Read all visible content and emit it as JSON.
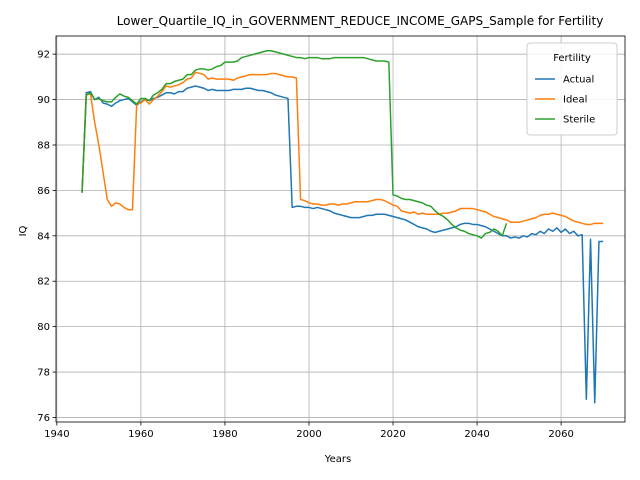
{
  "chart_data": {
    "type": "line",
    "title": "Lower_Quartile_IQ_in_GOVERNMENT_REDUCE_INCOME_GAPS_Sample for Fertility",
    "xlabel": "Years",
    "ylabel": "IQ",
    "xlim": [
      1939.8,
      2075.2
    ],
    "ylim": [
      75.8,
      92.8
    ],
    "xticks": [
      1940,
      1960,
      1980,
      2000,
      2020,
      2040,
      2060
    ],
    "yticks": [
      76,
      78,
      80,
      82,
      84,
      86,
      88,
      90,
      92
    ],
    "grid": true,
    "legend": {
      "title": "Fertility",
      "placement": "top-right"
    },
    "series": [
      {
        "name": "Actual",
        "color": "#1f77b4",
        "x": [
          1946,
          1947,
          1948,
          1949,
          1950,
          1951,
          1952,
          1953,
          1954,
          1955,
          1956,
          1957,
          1958,
          1959,
          1960,
          1961,
          1962,
          1963,
          1964,
          1965,
          1966,
          1967,
          1968,
          1969,
          1970,
          1971,
          1972,
          1973,
          1974,
          1975,
          1976,
          1977,
          1978,
          1979,
          1980,
          1981,
          1982,
          1983,
          1984,
          1985,
          1986,
          1987,
          1988,
          1989,
          1990,
          1991,
          1992,
          1993,
          1994,
          1995,
          1996,
          1997,
          1998,
          1999,
          2000,
          2001,
          2002,
          2003,
          2004,
          2005,
          2006,
          2007,
          2008,
          2009,
          2010,
          2011,
          2012,
          2013,
          2014,
          2015,
          2016,
          2017,
          2018,
          2019,
          2020,
          2021,
          2022,
          2023,
          2024,
          2025,
          2026,
          2027,
          2028,
          2029,
          2030,
          2031,
          2032,
          2033,
          2034,
          2035,
          2036,
          2037,
          2038,
          2039,
          2040,
          2041,
          2042,
          2043,
          2044,
          2045,
          2046,
          2047,
          2048,
          2049,
          2050,
          2051,
          2052,
          2053,
          2054,
          2055,
          2056,
          2057,
          2058,
          2059,
          2060,
          2061,
          2062,
          2063,
          2064,
          2065,
          2066,
          2067,
          2068,
          2069,
          2070
        ],
        "values": [
          85.9,
          90.3,
          90.35,
          90.0,
          90.1,
          89.85,
          89.8,
          89.7,
          89.85,
          89.95,
          90.0,
          90.05,
          89.9,
          89.75,
          89.9,
          90.0,
          89.95,
          90.05,
          90.1,
          90.2,
          90.3,
          90.3,
          90.25,
          90.35,
          90.35,
          90.5,
          90.55,
          90.6,
          90.55,
          90.5,
          90.4,
          90.45,
          90.4,
          90.4,
          90.4,
          90.4,
          90.45,
          90.45,
          90.45,
          90.5,
          90.5,
          90.45,
          90.4,
          90.4,
          90.35,
          90.3,
          90.2,
          90.15,
          90.1,
          90.05,
          85.25,
          85.3,
          85.3,
          85.25,
          85.25,
          85.2,
          85.25,
          85.2,
          85.15,
          85.1,
          85.0,
          84.95,
          84.9,
          84.85,
          84.8,
          84.8,
          84.8,
          84.85,
          84.9,
          84.9,
          84.95,
          84.95,
          84.95,
          84.9,
          84.85,
          84.8,
          84.75,
          84.7,
          84.6,
          84.5,
          84.4,
          84.35,
          84.3,
          84.2,
          84.15,
          84.2,
          84.25,
          84.3,
          84.35,
          84.4,
          84.5,
          84.55,
          84.55,
          84.5,
          84.5,
          84.45,
          84.4,
          84.3,
          84.2,
          84.1,
          84.0,
          84.0,
          83.9,
          83.95,
          83.9,
          84.0,
          83.95,
          84.1,
          84.05,
          84.2,
          84.1,
          84.3,
          84.2,
          84.35,
          84.15,
          84.3,
          84.1,
          84.2,
          84.0,
          84.05,
          76.8,
          83.85,
          76.65,
          83.75,
          83.75
        ],
        "x_detail_note": ""
      },
      {
        "name": "Ideal",
        "color": "#ff7f0e",
        "x": [
          1946,
          1947,
          1948,
          1949,
          1950,
          1951,
          1952,
          1953,
          1954,
          1955,
          1956,
          1957,
          1958,
          1959,
          1960,
          1961,
          1962,
          1963,
          1964,
          1965,
          1966,
          1967,
          1968,
          1969,
          1970,
          1971,
          1972,
          1973,
          1974,
          1975,
          1976,
          1977,
          1978,
          1979,
          1980,
          1981,
          1982,
          1983,
          1984,
          1985,
          1986,
          1987,
          1988,
          1989,
          1990,
          1991,
          1992,
          1993,
          1994,
          1995,
          1996,
          1997,
          1998,
          1999,
          2000,
          2001,
          2002,
          2003,
          2004,
          2005,
          2006,
          2007,
          2008,
          2009,
          2010,
          2011,
          2012,
          2013,
          2014,
          2015,
          2016,
          2017,
          2018,
          2019,
          2020,
          2021,
          2022,
          2023,
          2024,
          2025,
          2026,
          2027,
          2028,
          2029,
          2030,
          2031,
          2032,
          2033,
          2034,
          2035,
          2036,
          2037,
          2038,
          2039,
          2040,
          2041,
          2042,
          2043,
          2044,
          2045,
          2046,
          2047,
          2048,
          2049,
          2050,
          2051,
          2052,
          2053,
          2054,
          2055,
          2056,
          2057,
          2058,
          2059,
          2060,
          2061,
          2062,
          2063,
          2064,
          2065,
          2066,
          2067,
          2068,
          2069,
          2070
        ],
        "values": [
          85.9,
          90.2,
          90.25,
          89.0,
          88.0,
          86.8,
          85.6,
          85.3,
          85.45,
          85.4,
          85.25,
          85.15,
          85.15,
          89.8,
          89.85,
          90.0,
          89.8,
          90.0,
          90.15,
          90.35,
          90.6,
          90.55,
          90.6,
          90.65,
          90.75,
          90.9,
          90.95,
          91.2,
          91.15,
          91.1,
          90.9,
          90.95,
          90.9,
          90.9,
          90.9,
          90.9,
          90.85,
          90.95,
          91.0,
          91.05,
          91.1,
          91.1,
          91.1,
          91.1,
          91.1,
          91.15,
          91.15,
          91.1,
          91.05,
          91.0,
          91.0,
          90.95,
          85.6,
          85.55,
          85.45,
          85.4,
          85.4,
          85.35,
          85.35,
          85.4,
          85.4,
          85.35,
          85.4,
          85.4,
          85.45,
          85.5,
          85.5,
          85.5,
          85.5,
          85.55,
          85.6,
          85.6,
          85.55,
          85.45,
          85.35,
          85.3,
          85.1,
          85.05,
          85.0,
          85.05,
          84.95,
          85.0,
          84.95,
          84.95,
          84.95,
          84.95,
          85.0,
          85.0,
          85.05,
          85.1,
          85.2,
          85.2,
          85.2,
          85.2,
          85.15,
          85.1,
          85.05,
          84.95,
          84.85,
          84.8,
          84.75,
          84.7,
          84.6,
          84.6,
          84.6,
          84.65,
          84.7,
          84.75,
          84.8,
          84.9,
          84.95,
          84.95,
          85.0,
          84.95,
          84.9,
          84.85,
          84.75,
          84.65,
          84.6,
          84.55,
          84.5,
          84.5,
          84.55,
          84.55,
          84.55
        ]
      },
      {
        "name": "Sterile",
        "color": "#2ca02c",
        "x": [
          1946,
          1947,
          1948,
          1949,
          1950,
          1951,
          1952,
          1953,
          1954,
          1955,
          1956,
          1957,
          1958,
          1959,
          1960,
          1961,
          1962,
          1963,
          1964,
          1965,
          1966,
          1967,
          1968,
          1969,
          1970,
          1971,
          1972,
          1973,
          1974,
          1975,
          1976,
          1977,
          1978,
          1979,
          1980,
          1981,
          1982,
          1983,
          1984,
          1985,
          1986,
          1987,
          1988,
          1989,
          1990,
          1991,
          1992,
          1993,
          1994,
          1995,
          1996,
          1997,
          1998,
          1999,
          2000,
          2001,
          2002,
          2003,
          2004,
          2005,
          2006,
          2007,
          2008,
          2009,
          2010,
          2011,
          2012,
          2013,
          2014,
          2015,
          2016,
          2017,
          2018,
          2019,
          2020,
          2021,
          2022,
          2023,
          2024,
          2025,
          2026,
          2027,
          2028,
          2029,
          2030,
          2031,
          2032,
          2033,
          2034,
          2035,
          2036,
          2037,
          2038,
          2039,
          2040,
          2041,
          2042,
          2043,
          2044,
          2045,
          2046,
          2047
        ],
        "values": [
          85.9,
          90.2,
          90.3,
          90.0,
          90.05,
          89.95,
          89.9,
          89.9,
          90.1,
          90.25,
          90.15,
          90.1,
          89.95,
          89.8,
          90.05,
          90.05,
          89.95,
          90.2,
          90.3,
          90.45,
          90.7,
          90.7,
          90.8,
          90.85,
          90.9,
          91.1,
          91.1,
          91.3,
          91.35,
          91.35,
          91.3,
          91.35,
          91.45,
          91.5,
          91.65,
          91.65,
          91.65,
          91.7,
          91.85,
          91.9,
          91.95,
          92.0,
          92.05,
          92.1,
          92.15,
          92.15,
          92.1,
          92.05,
          92.0,
          91.95,
          91.9,
          91.85,
          91.85,
          91.8,
          91.85,
          91.85,
          91.85,
          91.8,
          91.8,
          91.8,
          91.85,
          91.85,
          91.85,
          91.85,
          91.85,
          91.85,
          91.85,
          91.85,
          91.8,
          91.75,
          91.7,
          91.7,
          91.7,
          91.65,
          85.8,
          85.75,
          85.65,
          85.6,
          85.6,
          85.55,
          85.5,
          85.45,
          85.35,
          85.3,
          85.1,
          84.95,
          84.85,
          84.7,
          84.5,
          84.35,
          84.25,
          84.2,
          84.1,
          84.05,
          84.0,
          83.9,
          84.1,
          84.15,
          84.3,
          84.2,
          84.0,
          84.55
        ]
      }
    ]
  }
}
